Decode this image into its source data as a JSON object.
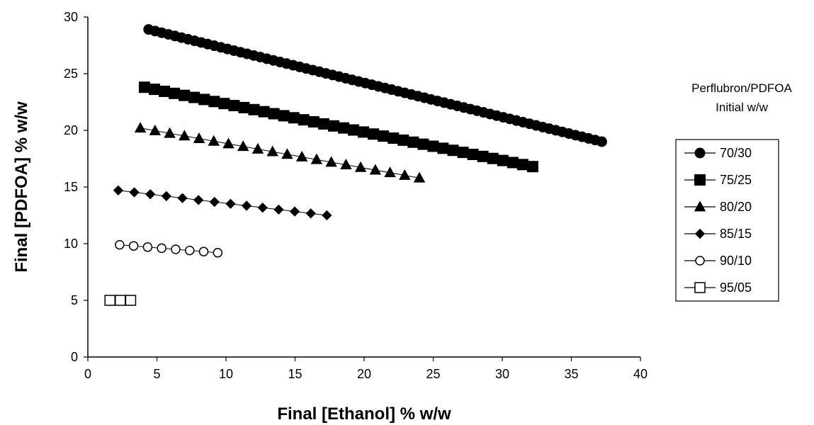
{
  "chart_data": {
    "type": "scatter",
    "title": "",
    "xlabel": "Final [Ethanol] % w/w",
    "ylabel": "Final [PDFOA] % w/w",
    "xlim": [
      0,
      40
    ],
    "ylim": [
      0,
      30
    ],
    "xticks": [
      "0",
      "5",
      "10",
      "15",
      "20",
      "25",
      "30",
      "35",
      "40"
    ],
    "yticks": [
      "0",
      "5",
      "10",
      "15",
      "20",
      "25",
      "30"
    ],
    "grid": false,
    "legend_title_line1": "Perflubron/PDFOA",
    "legend_title_line2": "Initial w/w",
    "legend_position": "right",
    "series": [
      {
        "name": "70/30",
        "marker": "filled-circle",
        "x_start": 4.4,
        "x_end": 37.2,
        "y_start": 28.9,
        "y_end": 19.0,
        "points": 70
      },
      {
        "name": "75/25",
        "marker": "filled-square",
        "x_start": 4.1,
        "x_end": 32.2,
        "y_start": 23.8,
        "y_end": 16.8,
        "points": 40
      },
      {
        "name": "80/20",
        "marker": "filled-triangle",
        "x_start": 3.8,
        "x_end": 24.0,
        "y_start": 20.2,
        "y_end": 15.8,
        "points": 20
      },
      {
        "name": "85/15",
        "marker": "filled-diamond",
        "x_start": 2.2,
        "x_end": 17.3,
        "y_start": 14.7,
        "y_end": 12.5,
        "points": 14
      },
      {
        "name": "90/10",
        "marker": "open-circle",
        "x_start": 2.3,
        "x_end": 9.4,
        "y_start": 9.9,
        "y_end": 9.2,
        "points": 8
      },
      {
        "name": "95/05",
        "marker": "open-square",
        "x_start": 1.6,
        "x_end": 3.1,
        "y_start": 5.0,
        "y_end": 5.0,
        "points": 3
      }
    ]
  }
}
